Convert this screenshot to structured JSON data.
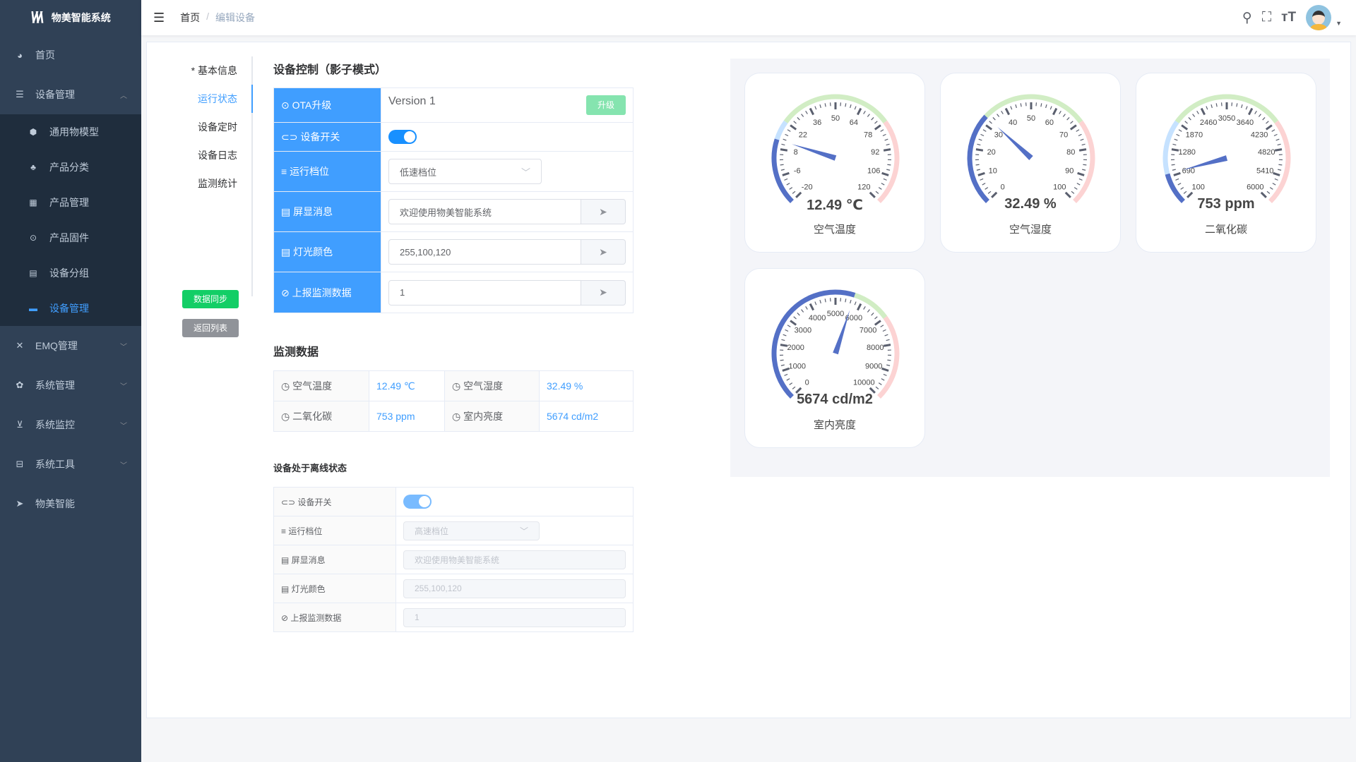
{
  "app": {
    "title": "物美智能系统",
    "logo_text": "VA"
  },
  "sidebar": {
    "items": [
      {
        "label": "首页",
        "icon": "dashboard-icon"
      },
      {
        "label": "设备管理",
        "icon": "layers-icon",
        "expanded": true,
        "children": [
          {
            "label": "通用物模型",
            "icon": "cube-icon"
          },
          {
            "label": "产品分类",
            "icon": "tree-icon"
          },
          {
            "label": "产品管理",
            "icon": "grid-icon"
          },
          {
            "label": "产品固件",
            "icon": "chip-icon"
          },
          {
            "label": "设备分组",
            "icon": "group-icon"
          },
          {
            "label": "设备管理",
            "icon": "list-icon",
            "active": true
          }
        ]
      },
      {
        "label": "EMQ管理",
        "icon": "network-icon"
      },
      {
        "label": "系统管理",
        "icon": "gear-icon"
      },
      {
        "label": "系统监控",
        "icon": "monitor-icon"
      },
      {
        "label": "系统工具",
        "icon": "toolbox-icon"
      },
      {
        "label": "物美智能",
        "icon": "paper-plane-icon"
      }
    ]
  },
  "header": {
    "breadcrumb": [
      "首页",
      "编辑设备"
    ]
  },
  "tabs": [
    "* 基本信息",
    "运行状态",
    "设备定时",
    "设备日志",
    "监测统计"
  ],
  "active_tab": "运行状态",
  "buttons": {
    "sync": "数据同步",
    "back": "返回列表"
  },
  "control": {
    "title": "设备控制（影子模式）",
    "ota": {
      "label": "OTA升级",
      "version": "Version 1",
      "button": "升级"
    },
    "switch": {
      "label": "设备开关",
      "on": true
    },
    "gear": {
      "label": "运行档位",
      "value": "低速档位"
    },
    "message": {
      "label": "屏显消息",
      "value": "欢迎使用物美智能系统"
    },
    "color": {
      "label": "灯光颜色",
      "value": "255,100,120"
    },
    "report": {
      "label": "上报监测数据",
      "value": "1"
    }
  },
  "monitor": {
    "title": "监测数据",
    "items": [
      {
        "label": "空气温度",
        "value": "12.49 ℃"
      },
      {
        "label": "空气湿度",
        "value": "32.49 %"
      },
      {
        "label": "二氧化碳",
        "value": "753 ppm"
      },
      {
        "label": "室内亮度",
        "value": "5674 cd/m2"
      }
    ]
  },
  "offline": {
    "title": "设备处于离线状态",
    "switch": {
      "label": "设备开关",
      "on": true
    },
    "gear": {
      "label": "运行档位",
      "value": "高速档位"
    },
    "message": {
      "label": "屏显消息",
      "value": "欢迎使用物美智能系统"
    },
    "color": {
      "label": "灯光颜色",
      "value": "255,100,120"
    },
    "report": {
      "label": "上报监测数据",
      "value": "1"
    }
  },
  "gauge_colors": {
    "progress": "#5470c6",
    "low": "#c6e2ff",
    "mid": "#d1edc4",
    "high": "#fcd3d3"
  },
  "gauges": [
    {
      "name": "空气温度",
      "value": 12.49,
      "display": "12.49 ℃",
      "min": -20,
      "max": 120,
      "ticks": [
        "-20",
        "-6",
        "8",
        "22",
        "36",
        "50",
        "64",
        "78",
        "92",
        "106",
        "120"
      ]
    },
    {
      "name": "空气湿度",
      "value": 32.49,
      "display": "32.49 %",
      "min": 0,
      "max": 100,
      "ticks": [
        "0",
        "10",
        "20",
        "30",
        "40",
        "50",
        "60",
        "70",
        "80",
        "90",
        "100"
      ]
    },
    {
      "name": "二氧化碳",
      "value": 753,
      "display": "753 ppm",
      "min": 100,
      "max": 6000,
      "ticks": [
        "100",
        "690",
        "1280",
        "1870",
        "2460",
        "3050",
        "3640",
        "4230",
        "4820",
        "5410",
        "6000"
      ]
    },
    {
      "name": "室内亮度",
      "value": 5674,
      "display": "5674 cd/m2",
      "min": 0,
      "max": 10000,
      "ticks": [
        "0",
        "1000",
        "2000",
        "3000",
        "4000",
        "5000",
        "6000",
        "7000",
        "8000",
        "9000",
        "10000"
      ]
    }
  ]
}
